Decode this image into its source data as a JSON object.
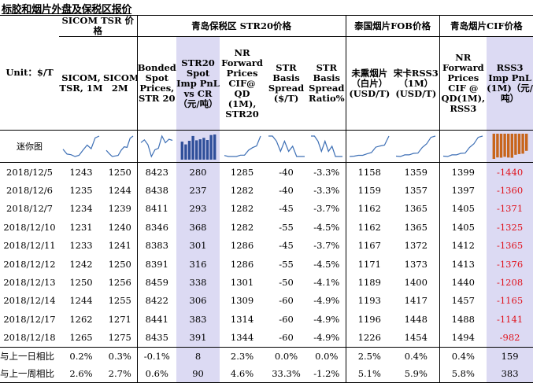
{
  "title": "标胶和烟片外盘及保税区报价",
  "headers": {
    "group_sicom": "SICOM TSR 价格",
    "group_qd": "青岛保税区 STR20价格",
    "group_th": "泰国烟片FOB价格",
    "group_cif": "青岛烟片CIF价格",
    "unit": "Unit：$/T",
    "col1": "SICOM, TSR, 1M",
    "col2": "SICOM,TSR, 2M",
    "col3": "Bonded Spot Prices, STR 20",
    "col4": "STR20 Spot Imp PnL vs CR（元/吨）",
    "col5": "NR Forward Prices CIF@ QD (1M), STR20",
    "col6": "STR Basis Spread ($/T)",
    "col7": "STR Basis Spread Ratio%",
    "col8": "未熏烟片（白片）(USD/T)",
    "col9": "宋卡RSS3（1M）(USD/T)",
    "col10": "NR Forward Prices CIF @ QD(1M), RSS3",
    "col11": "RSS3 Imp PnL (1M)（元/吨）"
  },
  "mini_label": "迷你图",
  "rows": [
    {
      "date": "2018/12/5",
      "c1": "1243",
      "c2": "1250",
      "c3": "8423",
      "c4": "280",
      "c5": "1285",
      "c6": "-40",
      "c7": "-3.3%",
      "c8": "1158",
      "c9": "1359",
      "c10": "1399",
      "c11": "-1440"
    },
    {
      "date": "2018/12/6",
      "c1": "1235",
      "c2": "1244",
      "c3": "8438",
      "c4": "237",
      "c5": "1282",
      "c6": "-40",
      "c7": "-3.3%",
      "c8": "1159",
      "c9": "1357",
      "c10": "1397",
      "c11": "-1360"
    },
    {
      "date": "2018/12/7",
      "c1": "1234",
      "c2": "1239",
      "c3": "8411",
      "c4": "293",
      "c5": "1282",
      "c6": "-45",
      "c7": "-3.7%",
      "c8": "1162",
      "c9": "1365",
      "c10": "1405",
      "c11": "-1371"
    },
    {
      "date": "2018/12/10",
      "c1": "1231",
      "c2": "1240",
      "c3": "8346",
      "c4": "368",
      "c5": "1282",
      "c6": "-55",
      "c7": "-4.5%",
      "c8": "1162",
      "c9": "1365",
      "c10": "1405",
      "c11": "-1325"
    },
    {
      "date": "2018/12/11",
      "c1": "1233",
      "c2": "1241",
      "c3": "8383",
      "c4": "301",
      "c5": "1286",
      "c6": "-45",
      "c7": "-3.7%",
      "c8": "1167",
      "c9": "1372",
      "c10": "1412",
      "c11": "-1365"
    },
    {
      "date": "2018/12/12",
      "c1": "1242",
      "c2": "1250",
      "c3": "8391",
      "c4": "316",
      "c5": "1286",
      "c6": "-55",
      "c7": "-4.5%",
      "c8": "1171",
      "c9": "1373",
      "c10": "1413",
      "c11": "-1376"
    },
    {
      "date": "2018/12/13",
      "c1": "1250",
      "c2": "1256",
      "c3": "8459",
      "c4": "338",
      "c5": "1301",
      "c6": "-50",
      "c7": "-4.1%",
      "c8": "1189",
      "c9": "1400",
      "c10": "1440",
      "c11": "-1208"
    },
    {
      "date": "2018/12/14",
      "c1": "1244",
      "c2": "1255",
      "c3": "8422",
      "c4": "306",
      "c5": "1309",
      "c6": "-60",
      "c7": "-4.9%",
      "c8": "1193",
      "c9": "1417",
      "c10": "1457",
      "c11": "-1165"
    },
    {
      "date": "2018/12/17",
      "c1": "1262",
      "c2": "1271",
      "c3": "8441",
      "c3b": "",
      "c4": "383",
      "c5": "1314",
      "c6": "-60",
      "c7": "-4.9%",
      "c8": "1196",
      "c9": "1448",
      "c10": "1488",
      "c11": "-1141"
    },
    {
      "date": "2018/12/18",
      "c1": "1265",
      "c2": "1275",
      "c3": "8435",
      "c4": "391",
      "c5": "1344",
      "c6": "-60",
      "c7": "-4.9%",
      "c8": "1226",
      "c9": "1454",
      "c10": "1494",
      "c11": "-982"
    }
  ],
  "summary": [
    {
      "label": "与上一日相比",
      "c1": "0.2%",
      "c2": "0.3%",
      "c3": "-0.1%",
      "c4": "8",
      "c5": "2.3%",
      "c6": "0.0%",
      "c7": "0.0%",
      "c8": "2.5%",
      "c9": "0.4%",
      "c10": "0.4%",
      "c11": "159"
    },
    {
      "label": "与上一周相比",
      "c1": "2.6%",
      "c2": "2.7%",
      "c3": "0.6%",
      "c4": "90",
      "c5": "4.6%",
      "c6": "33.3%",
      "c7": "-1.2%",
      "c8": "5.1%",
      "c9": "5.9%",
      "c10": "5.8%",
      "c11": "383"
    }
  ],
  "colors": {
    "highlight": "#dcdaf3",
    "negative": "#e0141e",
    "sparkline": "#3d6fb5",
    "bars_blue": "#2f4f9a",
    "bars_orange": "#c8651b"
  }
}
